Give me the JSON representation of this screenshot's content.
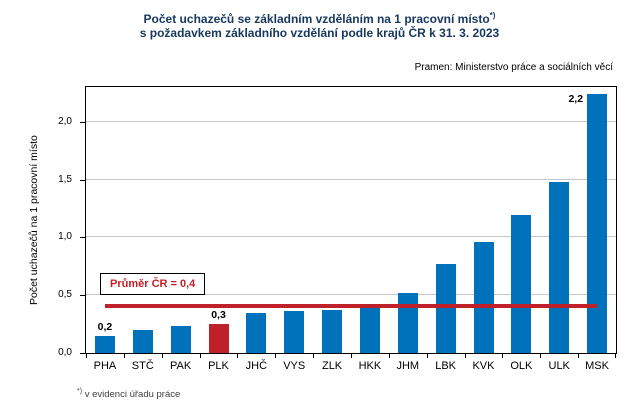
{
  "title": {
    "line1": "Počet uchazečů se základním vzděláním na 1 pracovní místo",
    "line1_sup": "*)",
    "line2": "s požadavkem základního vzdělání podle krajů ČR k 31. 3. 2023",
    "color": "#17375E"
  },
  "source": "Pramen:  Ministerstvo práce a sociálních věcí",
  "footnote": {
    "sup": "*)",
    "text": "v evidenci úřadu práce"
  },
  "chart_data": {
    "type": "bar",
    "title": "Počet uchazečů se základním vzděláním na 1 pracovní místo s požadavkem základního vzdělání podle krajů ČR k 31. 3. 2023",
    "categories": [
      "PHA",
      "STČ",
      "PAK",
      "PLK",
      "JHČ",
      "VYS",
      "ZLK",
      "HKK",
      "JHM",
      "LBK",
      "KVK",
      "OLK",
      "ULK",
      "MSK"
    ],
    "values": [
      0.15,
      0.2,
      0.23,
      0.25,
      0.35,
      0.36,
      0.37,
      0.42,
      0.52,
      0.77,
      0.96,
      1.19,
      1.48,
      2.24
    ],
    "bar_labels": [
      "0,2",
      null,
      null,
      "0,3",
      null,
      null,
      null,
      null,
      null,
      null,
      null,
      null,
      null,
      "2,2"
    ],
    "label_positions": [
      "above",
      null,
      null,
      "above",
      null,
      null,
      null,
      null,
      null,
      null,
      null,
      null,
      null,
      "left"
    ],
    "highlight_index": 3,
    "average_line": {
      "value": 0.41,
      "label": "Průměr ČR = 0,4"
    },
    "xlabel": "",
    "ylabel": "Počet uchazečů na 1 pracovní místo",
    "ylim": [
      0,
      2.3
    ],
    "yticks": {
      "values": [
        0,
        0.5,
        1,
        1.5,
        2
      ],
      "labels": [
        "0,0",
        "0,5",
        "1,0",
        "1,5",
        "2,0"
      ]
    },
    "colors": {
      "bar": "#0072BC",
      "highlight": "#C0202A",
      "average_line": "#C0202A"
    },
    "grid": true,
    "legend": false
  }
}
